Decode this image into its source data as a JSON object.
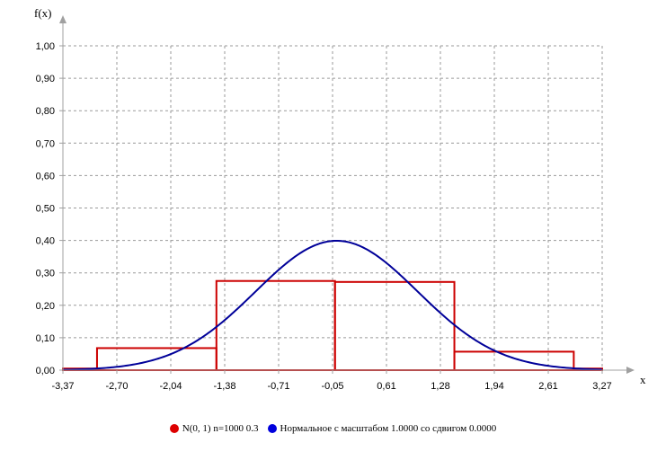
{
  "chart_data": {
    "type": "line",
    "ylabel": "f(x)",
    "xlabel": "x",
    "xlim": [
      -3.37,
      3.27
    ],
    "ylim": [
      0,
      1.0
    ],
    "x_ticks": [
      "-3,37",
      "-2,70",
      "-2,04",
      "-1,38",
      "-0,71",
      "-0,05",
      "0,61",
      "1,28",
      "1,94",
      "2,61",
      "3,27"
    ],
    "y_ticks": [
      "0,00",
      "0,10",
      "0,20",
      "0,30",
      "0,40",
      "0,50",
      "0,60",
      "0,70",
      "0,80",
      "0,90",
      "1,00"
    ],
    "grid": true,
    "legend_position": "bottom",
    "series": [
      {
        "name": "N(0, 1) n=1000 0.3",
        "kind": "histogram",
        "color": "#cc0000",
        "bins": [
          {
            "x0": -3.37,
            "x1": -2.95,
            "value": 0.005
          },
          {
            "x0": -2.95,
            "x1": -1.48,
            "value": 0.068
          },
          {
            "x0": -1.48,
            "x1": -0.02,
            "value": 0.275
          },
          {
            "x0": -0.02,
            "x1": 1.45,
            "value": 0.272
          },
          {
            "x0": 1.45,
            "x1": 2.92,
            "value": 0.057
          },
          {
            "x0": 2.92,
            "x1": 3.27,
            "value": 0.005
          }
        ]
      },
      {
        "name": "Нормальное с масштабом 1.0000 со сдвигом 0.0000",
        "kind": "normal_pdf",
        "color": "#000099",
        "mean": 0.0,
        "sd": 1.0
      }
    ]
  }
}
